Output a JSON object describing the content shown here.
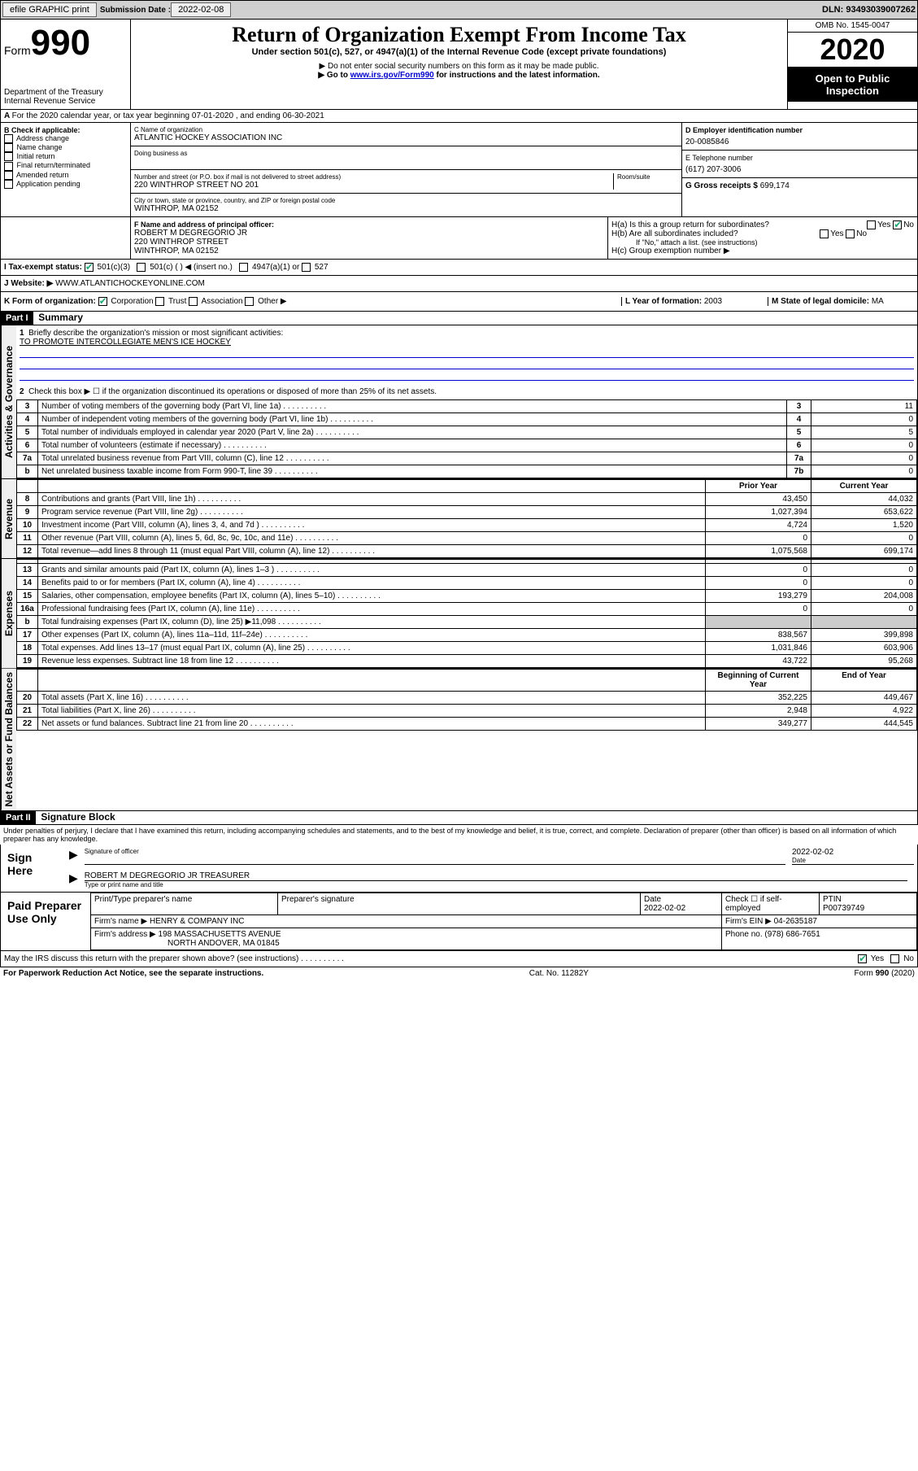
{
  "printbar": {
    "efile": "efile GRAPHIC print",
    "submission_label": "Submission Date :",
    "submission_date": "2022-02-08",
    "dln_label": "DLN:",
    "dln": "93493039007262"
  },
  "header": {
    "form_label": "Form",
    "form_num": "990",
    "dept": "Department of the Treasury\nInternal Revenue Service",
    "title": "Return of Organization Exempt From Income Tax",
    "subtitle": "Under section 501(c), 527, or 4947(a)(1) of the Internal Revenue Code (except private foundations)",
    "note1": "▶ Do not enter social security numbers on this form as it may be made public.",
    "note2_pre": "▶ Go to ",
    "note2_link": "www.irs.gov/Form990",
    "note2_post": " for instructions and the latest information.",
    "omb": "OMB No. 1545-0047",
    "year": "2020",
    "inspection": "Open to Public Inspection"
  },
  "period": {
    "text": "For the 2020 calendar year, or tax year beginning 07-01-2020    , and ending 06-30-2021"
  },
  "boxB": {
    "label": "B Check if applicable:",
    "items": [
      "Address change",
      "Name change",
      "Initial return",
      "Final return/terminated",
      "Amended return",
      "Application pending"
    ]
  },
  "boxC": {
    "name_label": "C Name of organization",
    "name": "ATLANTIC HOCKEY ASSOCIATION INC",
    "dba_label": "Doing business as",
    "addr_label": "Number and street (or P.O. box if mail is not delivered to street address)",
    "room_label": "Room/suite",
    "addr": "220 WINTHROP STREET NO 201",
    "city_label": "City or town, state or province, country, and ZIP or foreign postal code",
    "city": "WINTHROP, MA  02152"
  },
  "boxD": {
    "label": "D Employer identification number",
    "ein": "20-0085846"
  },
  "boxE": {
    "label": "E Telephone number",
    "phone": "(617) 207-3006"
  },
  "boxG": {
    "label": "G Gross receipts $",
    "amount": "699,174"
  },
  "boxF": {
    "label": "F Name and address of principal officer:",
    "name": "ROBERT M DEGREGORIO JR",
    "addr1": "220 WINTHROP STREET",
    "addr2": "WINTHROP, MA  02152"
  },
  "boxH": {
    "ha_label": "H(a)  Is this a group return for subordinates?",
    "hb_label": "H(b)  Are all subordinates included?",
    "hb_note": "If \"No,\" attach a list. (see instructions)",
    "hc_label": "H(c)  Group exemption number ▶"
  },
  "boxI": {
    "label": "I   Tax-exempt status:",
    "c3": "501(c)(3)",
    "c": "501(c) (   ) ◀ (insert no.)",
    "a1": "4947(a)(1) or",
    "s527": "527"
  },
  "boxJ": {
    "label": "J   Website: ▶",
    "url": "WWW.ATLANTICHOCKEYONLINE.COM"
  },
  "boxK": {
    "label": "K Form of organization:",
    "corp": "Corporation",
    "trust": "Trust",
    "assoc": "Association",
    "other": "Other ▶"
  },
  "boxL": {
    "label": "L Year of formation:",
    "year": "2003"
  },
  "boxM": {
    "label": "M State of legal domicile:",
    "state": "MA"
  },
  "part1": {
    "header": "Part I",
    "title": "Summary",
    "vert_gov": "Activities & Governance",
    "vert_rev": "Revenue",
    "vert_exp": "Expenses",
    "vert_net": "Net Assets or Fund Balances",
    "line1_label": "Briefly describe the organization's mission or most significant activities:",
    "line1_text": "TO PROMOTE INTERCOLLEGIATE MEN'S ICE HOCKEY",
    "line2": "Check this box ▶ ☐  if the organization discontinued its operations or disposed of more than 25% of its net assets.",
    "lines_gov": [
      {
        "n": "3",
        "text": "Number of voting members of the governing body (Part VI, line 1a)",
        "box": "3",
        "val": "11"
      },
      {
        "n": "4",
        "text": "Number of independent voting members of the governing body (Part VI, line 1b)",
        "box": "4",
        "val": "0"
      },
      {
        "n": "5",
        "text": "Total number of individuals employed in calendar year 2020 (Part V, line 2a)",
        "box": "5",
        "val": "5"
      },
      {
        "n": "6",
        "text": "Total number of volunteers (estimate if necessary)",
        "box": "6",
        "val": "0"
      },
      {
        "n": "7a",
        "text": "Total unrelated business revenue from Part VIII, column (C), line 12",
        "box": "7a",
        "val": "0"
      },
      {
        "n": "b",
        "text": "Net unrelated business taxable income from Form 990-T, line 39",
        "box": "7b",
        "val": "0"
      }
    ],
    "col_prior": "Prior Year",
    "col_current": "Current Year",
    "lines_rev": [
      {
        "n": "8",
        "text": "Contributions and grants (Part VIII, line 1h)",
        "prior": "43,450",
        "curr": "44,032"
      },
      {
        "n": "9",
        "text": "Program service revenue (Part VIII, line 2g)",
        "prior": "1,027,394",
        "curr": "653,622"
      },
      {
        "n": "10",
        "text": "Investment income (Part VIII, column (A), lines 3, 4, and 7d )",
        "prior": "4,724",
        "curr": "1,520"
      },
      {
        "n": "11",
        "text": "Other revenue (Part VIII, column (A), lines 5, 6d, 8c, 9c, 10c, and 11e)",
        "prior": "0",
        "curr": "0"
      },
      {
        "n": "12",
        "text": "Total revenue—add lines 8 through 11 (must equal Part VIII, column (A), line 12)",
        "prior": "1,075,568",
        "curr": "699,174"
      }
    ],
    "lines_exp": [
      {
        "n": "13",
        "text": "Grants and similar amounts paid (Part IX, column (A), lines 1–3 )",
        "prior": "0",
        "curr": "0"
      },
      {
        "n": "14",
        "text": "Benefits paid to or for members (Part IX, column (A), line 4)",
        "prior": "0",
        "curr": "0"
      },
      {
        "n": "15",
        "text": "Salaries, other compensation, employee benefits (Part IX, column (A), lines 5–10)",
        "prior": "193,279",
        "curr": "204,008"
      },
      {
        "n": "16a",
        "text": "Professional fundraising fees (Part IX, column (A), line 11e)",
        "prior": "0",
        "curr": "0"
      },
      {
        "n": "b",
        "text": "Total fundraising expenses (Part IX, column (D), line 25) ▶11,098",
        "prior": "",
        "curr": "",
        "shaded": true
      },
      {
        "n": "17",
        "text": "Other expenses (Part IX, column (A), lines 11a–11d, 11f–24e)",
        "prior": "838,567",
        "curr": "399,898"
      },
      {
        "n": "18",
        "text": "Total expenses. Add lines 13–17 (must equal Part IX, column (A), line 25)",
        "prior": "1,031,846",
        "curr": "603,906"
      },
      {
        "n": "19",
        "text": "Revenue less expenses. Subtract line 18 from line 12",
        "prior": "43,722",
        "curr": "95,268"
      }
    ],
    "col_begin": "Beginning of Current Year",
    "col_end": "End of Year",
    "lines_net": [
      {
        "n": "20",
        "text": "Total assets (Part X, line 16)",
        "prior": "352,225",
        "curr": "449,467"
      },
      {
        "n": "21",
        "text": "Total liabilities (Part X, line 26)",
        "prior": "2,948",
        "curr": "4,922"
      },
      {
        "n": "22",
        "text": "Net assets or fund balances. Subtract line 21 from line 20",
        "prior": "349,277",
        "curr": "444,545"
      }
    ]
  },
  "part2": {
    "header": "Part II",
    "title": "Signature Block",
    "declaration": "Under penalties of perjury, I declare that I have examined this return, including accompanying schedules and statements, and to the best of my knowledge and belief, it is true, correct, and complete. Declaration of preparer (other than officer) is based on all information of which preparer has any knowledge.",
    "sign_here": "Sign Here",
    "sig_officer": "Signature of officer",
    "sig_date": "2022-02-02",
    "date_label": "Date",
    "officer_name": "ROBERT M DEGREGORIO JR  TREASURER",
    "type_label": "Type or print name and title",
    "paid_prep": "Paid Preparer Use Only",
    "prep_name_label": "Print/Type preparer's name",
    "prep_sig_label": "Preparer's signature",
    "prep_date": "2022-02-02",
    "prep_check": "Check ☐  if self-employed",
    "ptin_label": "PTIN",
    "ptin": "P00739749",
    "firm_name_label": "Firm's name    ▶",
    "firm_name": "HENRY & COMPANY INC",
    "firm_ein_label": "Firm's EIN ▶",
    "firm_ein": "04-2635187",
    "firm_addr_label": "Firm's address ▶",
    "firm_addr1": "198 MASSACHUSETTS AVENUE",
    "firm_addr2": "NORTH ANDOVER, MA  01845",
    "phone_label": "Phone no.",
    "phone": "(978) 686-7651",
    "discuss": "May the IRS discuss this return with the preparer shown above? (see instructions)",
    "yes": "Yes",
    "no": "No"
  },
  "footer": {
    "paperwork": "For Paperwork Reduction Act Notice, see the separate instructions.",
    "catno": "Cat. No. 11282Y",
    "form": "Form 990 (2020)"
  }
}
